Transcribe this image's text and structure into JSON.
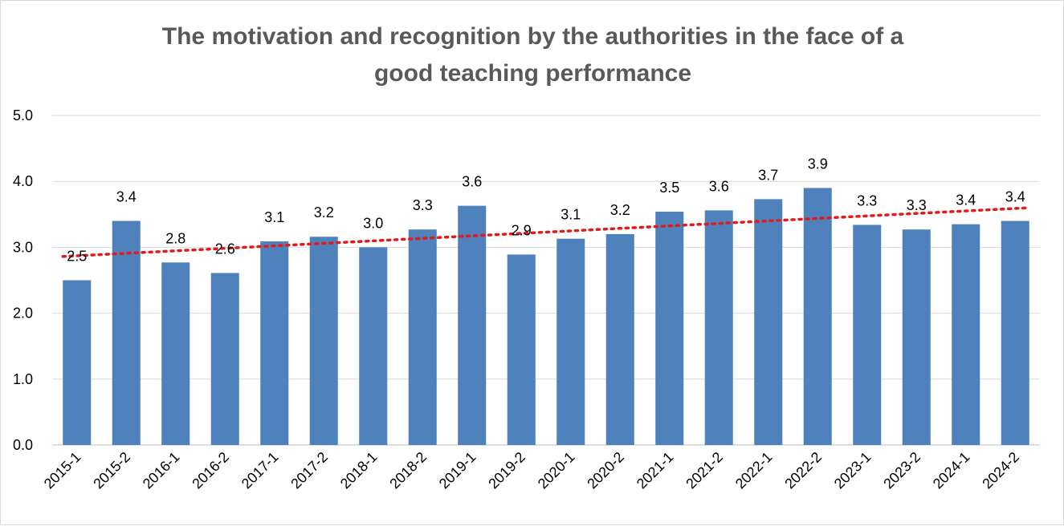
{
  "chart_data": {
    "type": "bar",
    "title_line1": "The motivation and recognition by the authorities in the face of a",
    "title_line2": "good teaching performance",
    "xlabel": "",
    "ylabel": "",
    "ylim": [
      0,
      5
    ],
    "y_ticks": [
      "0.0",
      "1.0",
      "2.0",
      "3.0",
      "4.0",
      "5.0"
    ],
    "grid": true,
    "legend": "none",
    "categories": [
      "2015-1",
      "2015-2",
      "2016-1",
      "2016-2",
      "2017-1",
      "2017-2",
      "2018-1",
      "2018-2",
      "2019-1",
      "2019-2",
      "2020-1",
      "2020-2",
      "2021-1",
      "2021-2",
      "2022-1",
      "2022-2",
      "2023-1",
      "2023-2",
      "2024-1",
      "2024-2"
    ],
    "values": [
      2.5,
      3.4,
      2.77,
      2.61,
      3.09,
      3.16,
      3.0,
      3.27,
      3.63,
      2.89,
      3.13,
      3.2,
      3.54,
      3.56,
      3.73,
      3.9,
      3.34,
      3.27,
      3.35,
      3.4
    ],
    "data_labels": [
      "2.5",
      "3.4",
      "2.8",
      "2.6",
      "3.1",
      "3.2",
      "3.0",
      "3.3",
      "3.6",
      "2.9",
      "3.1",
      "3.2",
      "3.5",
      "3.6",
      "3.7",
      "3.9",
      "3.3",
      "3.3",
      "3.4",
      "3.4"
    ],
    "trendline": {
      "type": "linear",
      "start": 2.86,
      "end": 3.6
    },
    "colors": {
      "bar": "#4f81bd",
      "trendline": "#e31a1c",
      "grid": "#d9d9d9",
      "title": "#595959"
    }
  }
}
